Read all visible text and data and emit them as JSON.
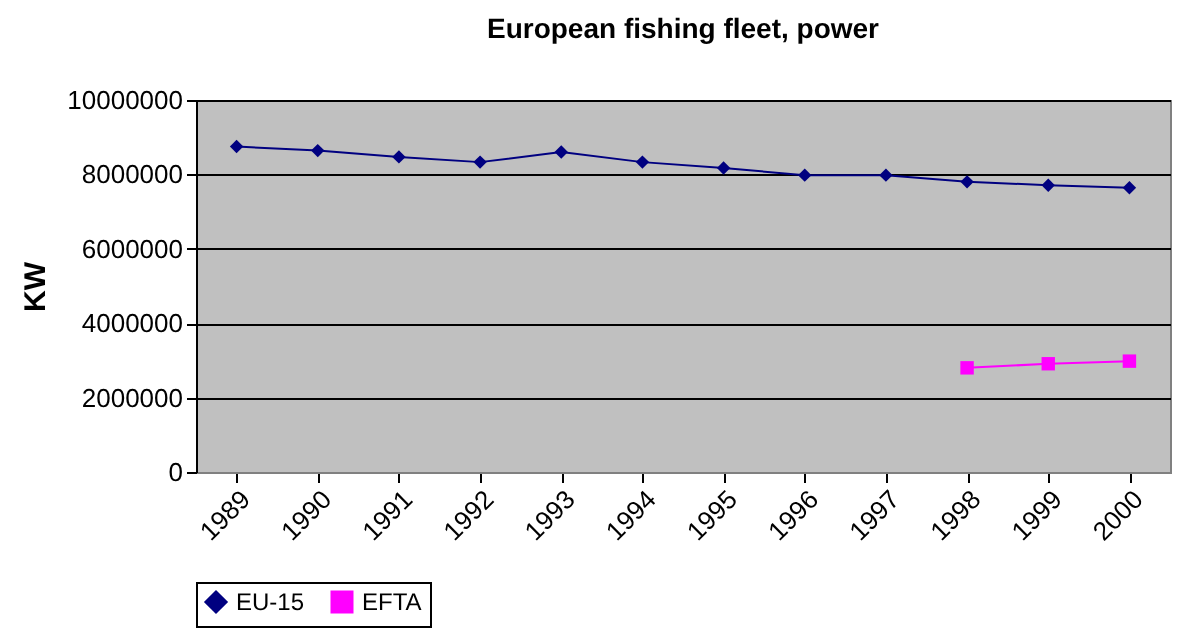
{
  "chart_data": {
    "type": "line",
    "title": "European fishing fleet, power",
    "ylabel": "KW",
    "categories": [
      "1989",
      "1990",
      "1991",
      "1992",
      "1993",
      "1994",
      "1995",
      "1996",
      "1997",
      "1998",
      "1999",
      "2000"
    ],
    "series": [
      {
        "name": "EU-15",
        "color": "#000080",
        "marker": "diamond",
        "values": [
          8750000,
          8640000,
          8470000,
          8330000,
          8600000,
          8330000,
          8170000,
          7980000,
          7980000,
          7800000,
          7710000,
          7640000
        ]
      },
      {
        "name": "EFTA",
        "color": "#ff00ff",
        "marker": "square",
        "values": [
          null,
          null,
          null,
          null,
          null,
          null,
          null,
          null,
          null,
          2800000,
          2910000,
          2980000
        ]
      }
    ],
    "ylim": [
      0,
      10000000
    ],
    "yticks": [
      0,
      2000000,
      4000000,
      6000000,
      8000000,
      10000000
    ],
    "grid": "y",
    "legend": "bottom"
  }
}
